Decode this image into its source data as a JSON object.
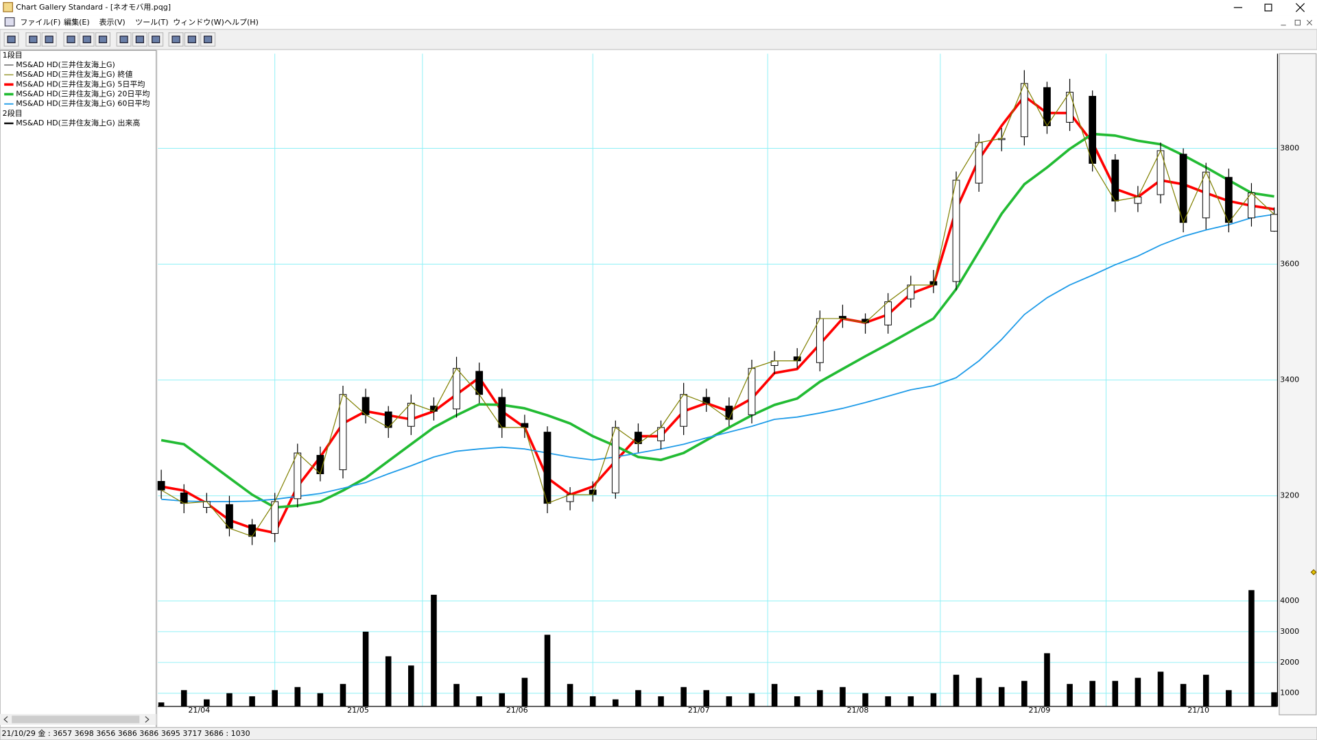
{
  "window": {
    "title": "Chart Gallery Standard - [ネオモバ用.pqg]"
  },
  "menu": [
    "ファイル(F)",
    "編集(E)",
    "表示(V)",
    "ツール(T)",
    "ウィンドウ(W)",
    "ヘルプ(H)"
  ],
  "panels": [
    "1段目",
    "2段目"
  ],
  "status": "21/10/29 金 : 3657 3698 3656 3686 3686 3695 3717 3686 : 1030",
  "chart_data": {
    "type": "candlestick",
    "categories": [
      null,
      "21/04",
      null,
      null,
      null,
      null,
      null,
      null,
      "21/05",
      null,
      null,
      null,
      null,
      null,
      null,
      "21/06",
      null,
      null,
      null,
      null,
      null,
      null,
      null,
      "21/07",
      null,
      null,
      null,
      null,
      null,
      null,
      "21/08",
      null,
      null,
      null,
      null,
      null,
      null,
      null,
      "21/09",
      null,
      null,
      null,
      null,
      null,
      null,
      "21/10",
      null,
      null,
      null,
      null
    ],
    "candles": {
      "name": "MS&AD HD(三井住友海上G)",
      "color": "#000000",
      "open": [
        3225,
        3205,
        3180,
        3185,
        3150,
        3135,
        3195,
        3270,
        3245,
        3370,
        3345,
        3320,
        3355,
        3350,
        3415,
        3370,
        3325,
        3310,
        3190,
        3210,
        3205,
        3310,
        3295,
        3320,
        3370,
        3355,
        3340,
        3425,
        3440,
        3430,
        3510,
        3505,
        3495,
        3540,
        3570,
        3570,
        3740,
        3815,
        3820,
        3905,
        3845,
        3890,
        3780,
        3705,
        3720,
        3790,
        3680,
        3750,
        3680,
        3657
      ],
      "high": [
        3245,
        3220,
        3205,
        3200,
        3160,
        3205,
        3290,
        3285,
        3390,
        3385,
        3355,
        3375,
        3370,
        3440,
        3430,
        3385,
        3340,
        3320,
        3215,
        3225,
        3330,
        3325,
        3330,
        3395,
        3385,
        3370,
        3435,
        3450,
        3455,
        3520,
        3530,
        3515,
        3550,
        3580,
        3590,
        3760,
        3825,
        3835,
        3935,
        3915,
        3920,
        3900,
        3790,
        3735,
        3810,
        3800,
        3775,
        3765,
        3740,
        3698
      ],
      "low": [
        3195,
        3170,
        3170,
        3130,
        3115,
        3120,
        3180,
        3225,
        3230,
        3325,
        3300,
        3305,
        3330,
        3335,
        3360,
        3300,
        3300,
        3170,
        3175,
        3190,
        3195,
        3275,
        3280,
        3305,
        3345,
        3320,
        3325,
        3410,
        3420,
        3415,
        3490,
        3480,
        3480,
        3525,
        3550,
        3555,
        3725,
        3795,
        3805,
        3825,
        3830,
        3760,
        3690,
        3690,
        3705,
        3655,
        3660,
        3655,
        3665,
        3656
      ],
      "close": [
        3210,
        3187,
        3190,
        3144,
        3130,
        3190,
        3274,
        3238,
        3375,
        3340,
        3318,
        3360,
        3346,
        3420,
        3375,
        3318,
        3318,
        3187,
        3202,
        3202,
        3318,
        3290,
        3318,
        3375,
        3360,
        3332,
        3420,
        3433,
        3433,
        3506,
        3506,
        3499,
        3535,
        3564,
        3564,
        3745,
        3810,
        3817,
        3912,
        3839,
        3897,
        3774,
        3709,
        3716,
        3796,
        3672,
        3759,
        3672,
        3723,
        3686
      ]
    },
    "series": [
      {
        "name": "MS&AD HD(三井住友海上G) 終値",
        "color": "#808000",
        "width": 1,
        "values": [
          3210,
          3187,
          3190,
          3144,
          3130,
          3190,
          3274,
          3238,
          3375,
          3340,
          3318,
          3360,
          3346,
          3420,
          3375,
          3318,
          3318,
          3187,
          3202,
          3202,
          3318,
          3290,
          3318,
          3375,
          3360,
          3332,
          3420,
          3433,
          3433,
          3506,
          3506,
          3499,
          3535,
          3564,
          3564,
          3745,
          3810,
          3817,
          3912,
          3839,
          3897,
          3774,
          3709,
          3716,
          3796,
          3672,
          3759,
          3672,
          3723,
          3686
        ]
      },
      {
        "name": "MS&AD HD(三井住友海上G) 5日平均",
        "color": "#ff0000",
        "width": 3,
        "values": [
          3216,
          3209,
          3187,
          3158,
          3144,
          3136,
          3216,
          3267,
          3325,
          3346,
          3339,
          3332,
          3346,
          3375,
          3404,
          3346,
          3318,
          3231,
          3202,
          3216,
          3260,
          3303,
          3303,
          3346,
          3360,
          3346,
          3368,
          3412,
          3419,
          3462,
          3506,
          3499,
          3513,
          3549,
          3564,
          3694,
          3781,
          3839,
          3890,
          3861,
          3861,
          3810,
          3730,
          3716,
          3745,
          3738,
          3723,
          3709,
          3701,
          3695
        ]
      },
      {
        "name": "MS&AD HD(三井住友海上G) 20日平均",
        "color": "#22bb33",
        "width": 3,
        "values": [
          3296,
          3289,
          3260,
          3231,
          3202,
          3180,
          3183,
          3190,
          3209,
          3231,
          3260,
          3289,
          3318,
          3339,
          3358,
          3357,
          3351,
          3339,
          3325,
          3303,
          3286,
          3267,
          3262,
          3274,
          3296,
          3318,
          3339,
          3357,
          3368,
          3397,
          3419,
          3441,
          3462,
          3484,
          3506,
          3557,
          3622,
          3687,
          3738,
          3767,
          3799,
          3825,
          3822,
          3813,
          3807,
          3788,
          3767,
          3745,
          3723,
          3717
        ]
      },
      {
        "name": "MS&AD HD(三井住友海上G) 60日平均",
        "color": "#1e9be8",
        "width": 1.5,
        "values": [
          3194,
          3191,
          3190,
          3190,
          3191,
          3194,
          3199,
          3204,
          3213,
          3223,
          3238,
          3252,
          3267,
          3277,
          3281,
          3284,
          3281,
          3274,
          3267,
          3262,
          3267,
          3274,
          3281,
          3289,
          3300,
          3310,
          3320,
          3332,
          3336,
          3343,
          3351,
          3361,
          3372,
          3383,
          3390,
          3404,
          3433,
          3470,
          3513,
          3542,
          3564,
          3581,
          3599,
          3614,
          3633,
          3648,
          3659,
          3668,
          3680,
          3686
        ]
      }
    ],
    "ylim": [
      3071,
      3962
    ],
    "yticks": [
      3200,
      3400,
      3600,
      3800
    ],
    "volume": {
      "name": "MS&AD HD(三井住友海上G) 出来高",
      "color": "#000000",
      "values": [
        700,
        1100,
        800,
        1000,
        900,
        1100,
        1200,
        1000,
        1300,
        3000,
        2200,
        1900,
        4200,
        1300,
        900,
        1000,
        1500,
        2900,
        1300,
        900,
        800,
        1100,
        900,
        1200,
        1100,
        900,
        1000,
        1300,
        900,
        1100,
        1200,
        1000,
        900,
        900,
        1000,
        1600,
        1500,
        1200,
        1400,
        2300,
        1300,
        1400,
        1400,
        1500,
        1700,
        1300,
        1600,
        1100,
        4350,
        1030
      ],
      "ylim": [
        570,
        4960
      ],
      "yticks": [
        1000,
        2000,
        3000,
        4000
      ]
    },
    "grid": true,
    "grid_color": "#8ef0f6"
  }
}
